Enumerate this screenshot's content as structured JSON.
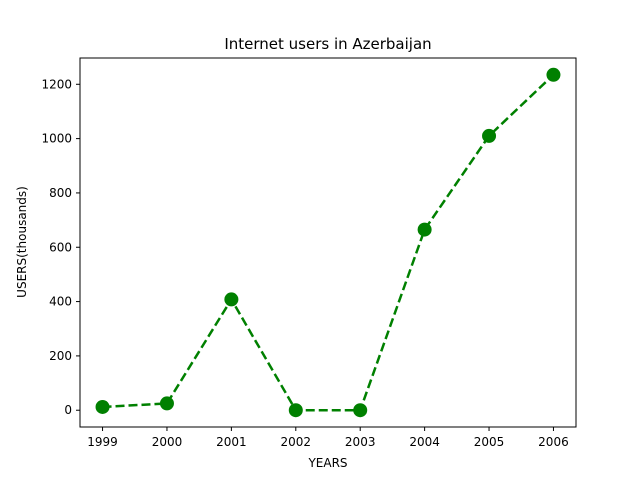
{
  "chart_data": {
    "type": "line",
    "title": "Internet users in Azerbaijan",
    "xlabel": "YEARS",
    "ylabel": "USERS(thousands)",
    "x": [
      "1999",
      "2000",
      "2001",
      "2002",
      "2003",
      "2004",
      "2005",
      "2006"
    ],
    "series": [
      {
        "values": [
          12,
          25,
          408,
          0,
          0,
          665,
          1010,
          1235
        ],
        "color": "#008000",
        "line_style": "dashed",
        "marker": "circle"
      }
    ],
    "yticks": [
      0,
      200,
      400,
      600,
      800,
      1000,
      1200
    ],
    "ylim": [
      -61.75,
      1296.75
    ],
    "grid": false
  }
}
